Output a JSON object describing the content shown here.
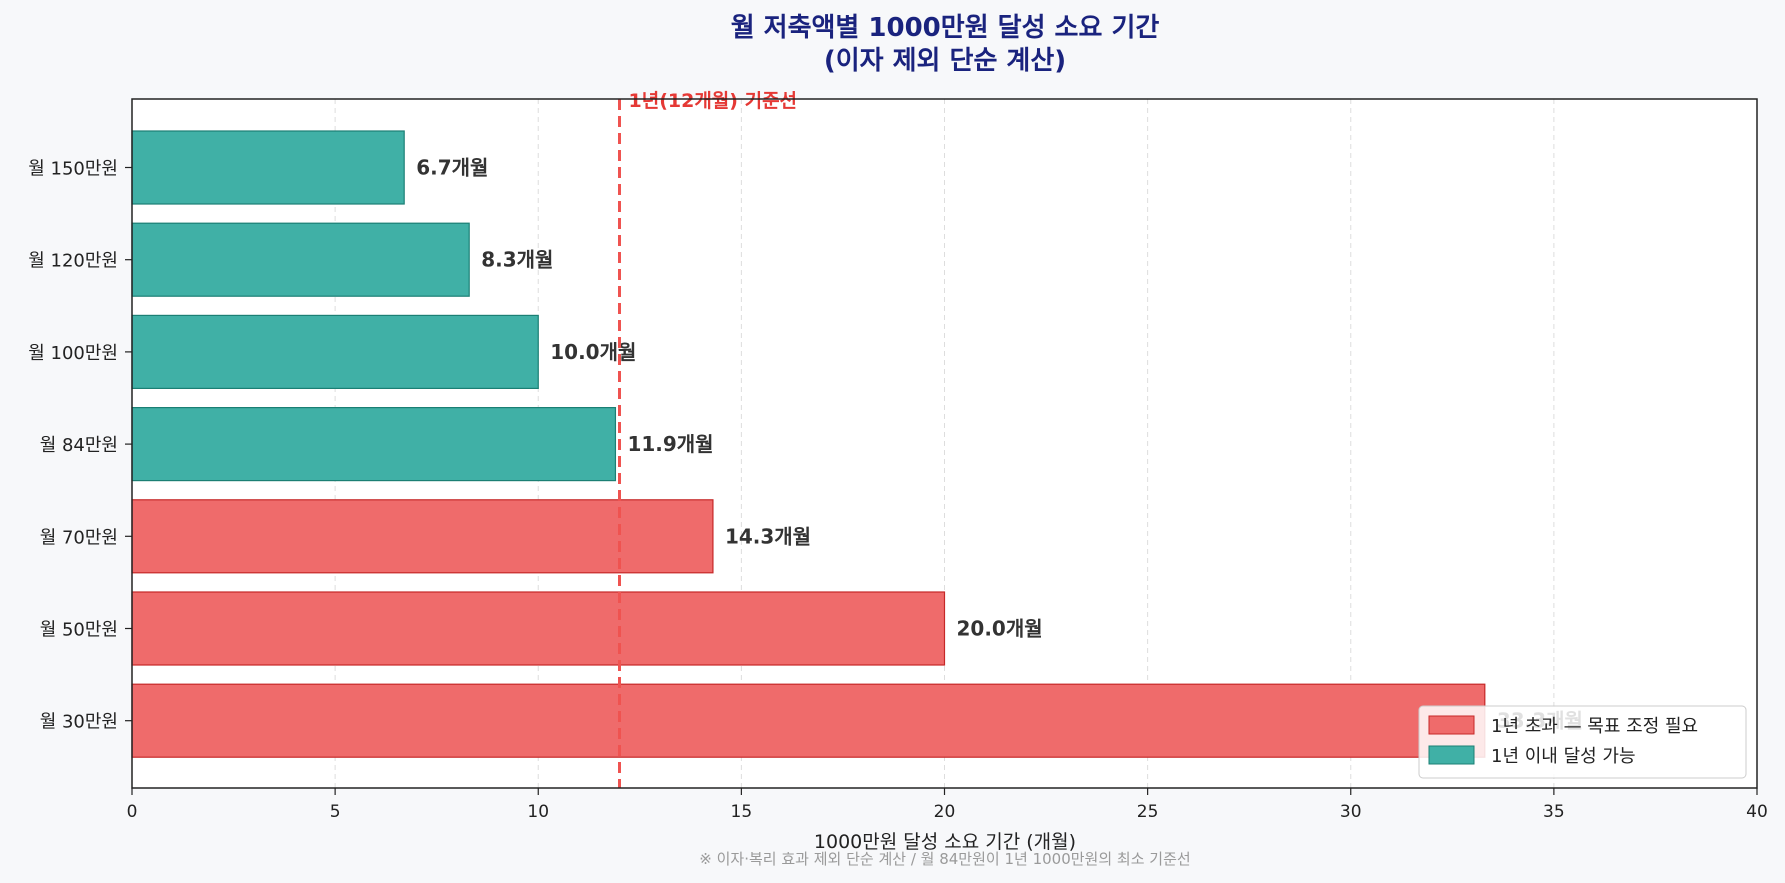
{
  "chart_data": {
    "type": "bar",
    "orientation": "horizontal",
    "title_line1": "월 저축액별 1000만원 달성 소요 기간",
    "title_line2": "(이자 제외 단순 계산)",
    "xlabel": "1000만원 달성 소요 기간 (개월)",
    "ylabel": "",
    "xlim": [
      0,
      40
    ],
    "xticks": [
      0,
      5,
      10,
      15,
      20,
      25,
      30,
      35,
      40
    ],
    "grid": "x-dashed",
    "categories": [
      "월 150만원",
      "월 120만원",
      "월 100만원",
      "월 84만원",
      "월 70만원",
      "월 50만원",
      "월 30만원"
    ],
    "values": [
      6.7,
      8.3,
      10.0,
      11.9,
      14.3,
      20.0,
      33.3
    ],
    "value_labels": [
      "6.7개월",
      "8.3개월",
      "10.0개월",
      "11.9개월",
      "14.3개월",
      "20.0개월",
      "33.3개월"
    ],
    "groups": [
      "within",
      "within",
      "within",
      "within",
      "over",
      "over",
      "over"
    ],
    "reference_line": {
      "x": 12,
      "label": "1년(12개월) 기준선",
      "color": "#ef5350"
    },
    "legend": {
      "placement": "bottom-right",
      "entries": [
        {
          "key": "over",
          "label": "1년 초과 — 목표 조정 필요",
          "color": "#ef6b6b"
        },
        {
          "key": "within",
          "label": "1년 이내 달성 가능",
          "color": "#40b0a6"
        }
      ]
    },
    "footnote": "※ 이자·복리 효과 제외 단순 계산 / 월 84만원이 1년 1000만원의 최소 기준선"
  }
}
